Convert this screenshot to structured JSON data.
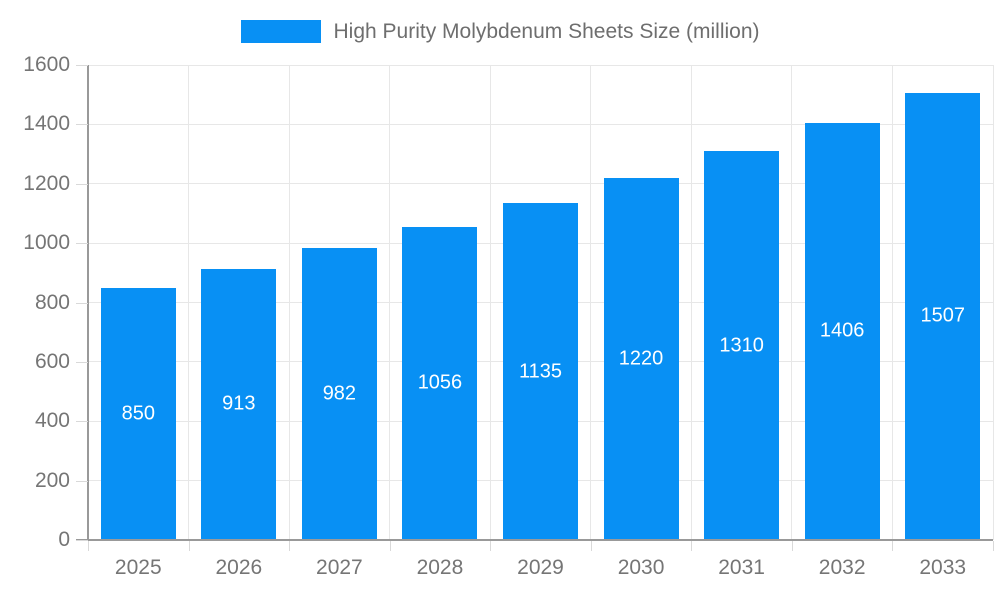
{
  "legend": {
    "label": "High Purity Molybdenum Sheets Size (million)"
  },
  "chart_data": {
    "type": "bar",
    "title": "High Purity Molybdenum Sheets Size (million)",
    "categories": [
      "2025",
      "2026",
      "2027",
      "2028",
      "2029",
      "2030",
      "2031",
      "2032",
      "2033"
    ],
    "values": [
      850,
      913,
      982,
      1056,
      1135,
      1220,
      1310,
      1406,
      1507
    ],
    "xlabel": "",
    "ylabel": "",
    "ylim": [
      0,
      1600
    ],
    "ytick_step": 200,
    "grid": true,
    "legend_position": "top",
    "bar_labels_inside": true,
    "colors": {
      "bar": "#0890F4",
      "bar_label_text": "#FFFFFF",
      "axis_line": "#999999",
      "grid_line": "#E7E7E7",
      "tick_line": "#D9D9D9",
      "axis_text": "#757575",
      "legend_text": "#6E6E6E",
      "background": "#FFFFFF"
    }
  }
}
